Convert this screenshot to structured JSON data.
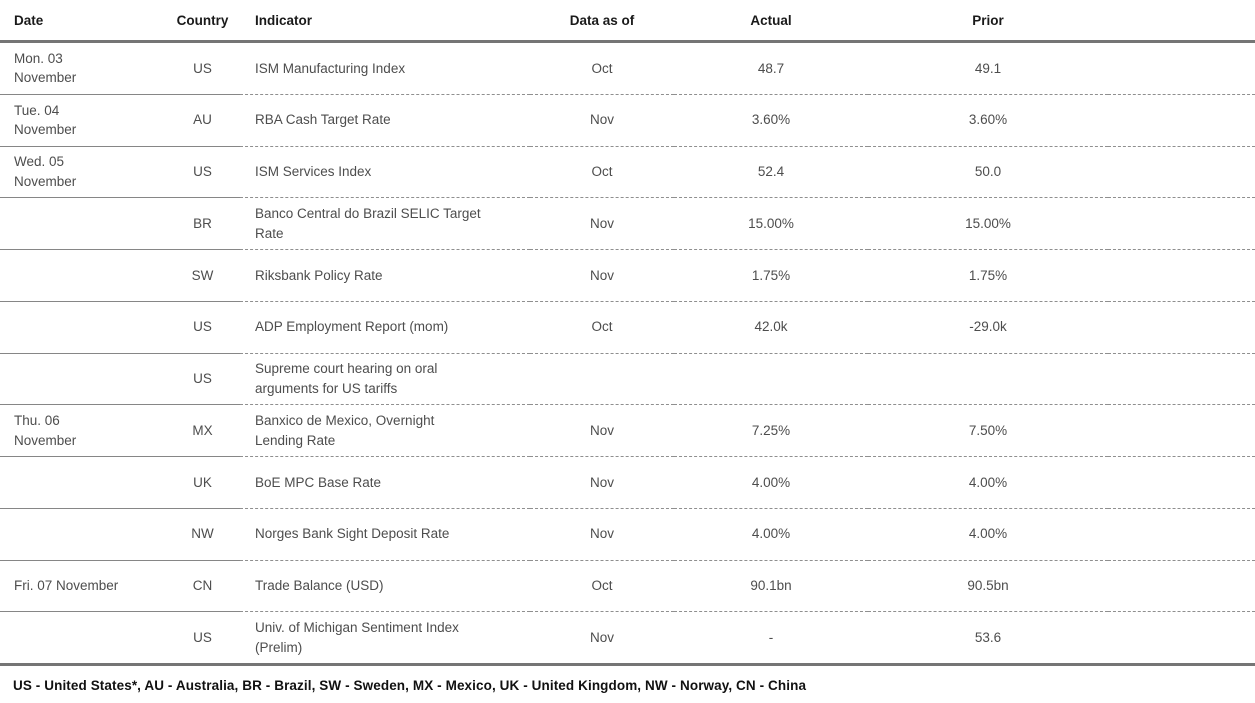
{
  "table": {
    "columns": [
      {
        "key": "date",
        "label": "Date"
      },
      {
        "key": "country",
        "label": "Country"
      },
      {
        "key": "indicator",
        "label": "Indicator"
      },
      {
        "key": "data_as_of",
        "label": "Data as of"
      },
      {
        "key": "actual",
        "label": "Actual"
      },
      {
        "key": "prior",
        "label": "Prior"
      }
    ],
    "rows": [
      {
        "date": "Mon. 03\nNovember",
        "country": "US",
        "indicator": "ISM Manufacturing Index",
        "data_as_of": "Oct",
        "actual": "48.7",
        "prior": "49.1"
      },
      {
        "date": "Tue. 04\nNovember",
        "country": "AU",
        "indicator": "RBA Cash Target Rate",
        "data_as_of": "Nov",
        "actual": "3.60%",
        "prior": "3.60%"
      },
      {
        "date": "Wed. 05\nNovember",
        "country": "US",
        "indicator": "ISM Services Index",
        "data_as_of": "Oct",
        "actual": "52.4",
        "prior": "50.0"
      },
      {
        "date": "",
        "country": "BR",
        "indicator": "Banco Central do Brazil SELIC Target\nRate",
        "data_as_of": "Nov",
        "actual": "15.00%",
        "prior": "15.00%"
      },
      {
        "date": "",
        "country": "SW",
        "indicator": "Riksbank Policy Rate",
        "data_as_of": "Nov",
        "actual": "1.75%",
        "prior": "1.75%"
      },
      {
        "date": "",
        "country": "US",
        "indicator": "ADP Employment Report (mom)",
        "data_as_of": "Oct",
        "actual": "42.0k",
        "prior": "-29.0k"
      },
      {
        "date": "",
        "country": "US",
        "indicator": "Supreme court hearing on oral\narguments for US tariffs",
        "data_as_of": "",
        "actual": "",
        "prior": ""
      },
      {
        "date": "Thu. 06\nNovember",
        "country": "MX",
        "indicator": "Banxico de Mexico, Overnight\nLending Rate",
        "data_as_of": "Nov",
        "actual": "7.25%",
        "prior": "7.50%"
      },
      {
        "date": "",
        "country": "UK",
        "indicator": "BoE MPC Base Rate",
        "data_as_of": "Nov",
        "actual": "4.00%",
        "prior": "4.00%"
      },
      {
        "date": "",
        "country": "NW",
        "indicator": "Norges Bank Sight Deposit Rate",
        "data_as_of": "Nov",
        "actual": "4.00%",
        "prior": "4.00%"
      },
      {
        "date": "Fri. 07 November",
        "country": "CN",
        "indicator": "Trade Balance (USD)",
        "data_as_of": "Oct",
        "actual": "90.1bn",
        "prior": "90.5bn"
      },
      {
        "date": "",
        "country": "US",
        "indicator": "Univ. of Michigan Sentiment Index\n(Prelim)",
        "data_as_of": "Nov",
        "actual": "-",
        "prior": "53.6"
      }
    ]
  },
  "footnote": "US - United States*, AU - Australia, BR - Brazil, SW - Sweden, MX - Mexico, UK - United Kingdom, NW - Norway, CN - China"
}
